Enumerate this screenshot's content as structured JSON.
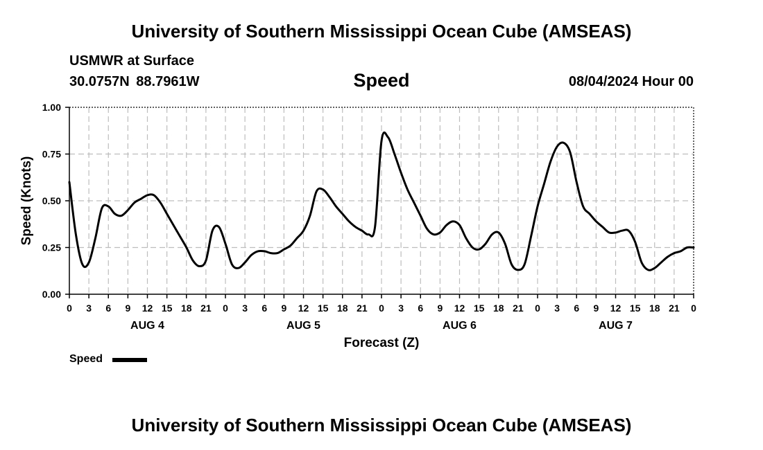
{
  "header": {
    "title": "University of Southern Mississippi Ocean Cube (AMSEAS)",
    "station": "USMWR at Surface",
    "coords": "30.0757N  88.7961W",
    "datetime": "08/04/2024 Hour 00"
  },
  "footer": {
    "title": "University of Southern Mississippi Ocean Cube (AMSEAS)"
  },
  "chart_data": {
    "type": "line",
    "title": "Speed",
    "xlabel": "Forecast (Z)",
    "ylabel": "Speed (Knots)",
    "ylim": [
      0,
      1
    ],
    "xlim_hours": [
      0,
      96
    ],
    "yticks": [
      {
        "value": 0,
        "label": "0.00"
      },
      {
        "value": 0.25,
        "label": "0.25"
      },
      {
        "value": 0.5,
        "label": "0.50"
      },
      {
        "value": 0.75,
        "label": "0.75"
      },
      {
        "value": 1,
        "label": "1.00"
      }
    ],
    "xtick_labels": [
      "0",
      "3",
      "6",
      "9",
      "12",
      "15",
      "18",
      "21",
      "0",
      "3",
      "6",
      "9",
      "12",
      "15",
      "18",
      "21",
      "0",
      "3",
      "6",
      "9",
      "12",
      "15",
      "18",
      "21",
      "0",
      "3",
      "6",
      "9",
      "12",
      "15",
      "18",
      "21",
      "0"
    ],
    "day_labels": [
      "AUG 4",
      "AUG 5",
      "AUG 6",
      "AUG 7"
    ],
    "grid": true,
    "legend_position": "bottom-left",
    "series": [
      {
        "name": "Speed",
        "color": "#000000",
        "x": [
          0,
          1,
          2,
          3,
          4,
          5,
          6,
          7,
          8,
          9,
          10,
          11,
          12,
          13,
          14,
          15,
          16,
          17,
          18,
          19,
          20,
          21,
          22,
          23,
          24,
          25,
          26,
          27,
          28,
          29,
          30,
          31,
          32,
          33,
          34,
          35,
          36,
          37,
          38,
          39,
          40,
          41,
          42,
          43,
          44,
          45,
          46,
          47,
          48,
          49,
          50,
          51,
          52,
          53,
          54,
          55,
          56,
          57,
          58,
          59,
          60,
          61,
          62,
          63,
          64,
          65,
          66,
          67,
          68,
          69,
          70,
          71,
          72,
          73,
          74,
          75,
          76,
          77,
          78,
          79,
          80,
          81,
          82,
          83,
          84,
          85,
          86,
          87,
          88,
          89,
          90,
          91,
          92,
          93,
          94,
          95,
          96
        ],
        "y": [
          0.6,
          0.32,
          0.16,
          0.17,
          0.3,
          0.46,
          0.47,
          0.43,
          0.42,
          0.45,
          0.49,
          0.51,
          0.53,
          0.53,
          0.49,
          0.43,
          0.37,
          0.31,
          0.25,
          0.18,
          0.15,
          0.18,
          0.34,
          0.36,
          0.27,
          0.16,
          0.14,
          0.17,
          0.21,
          0.23,
          0.23,
          0.22,
          0.22,
          0.24,
          0.26,
          0.3,
          0.34,
          0.42,
          0.55,
          0.56,
          0.52,
          0.47,
          0.43,
          0.39,
          0.36,
          0.34,
          0.32,
          0.36,
          0.82,
          0.84,
          0.75,
          0.65,
          0.56,
          0.49,
          0.42,
          0.35,
          0.32,
          0.33,
          0.37,
          0.39,
          0.37,
          0.3,
          0.25,
          0.24,
          0.27,
          0.32,
          0.33,
          0.27,
          0.16,
          0.13,
          0.16,
          0.31,
          0.47,
          0.59,
          0.71,
          0.79,
          0.81,
          0.76,
          0.6,
          0.47,
          0.43,
          0.39,
          0.36,
          0.33,
          0.33,
          0.34,
          0.34,
          0.28,
          0.17,
          0.13,
          0.14,
          0.17,
          0.2,
          0.22,
          0.23,
          0.25,
          0.25
        ]
      }
    ]
  }
}
